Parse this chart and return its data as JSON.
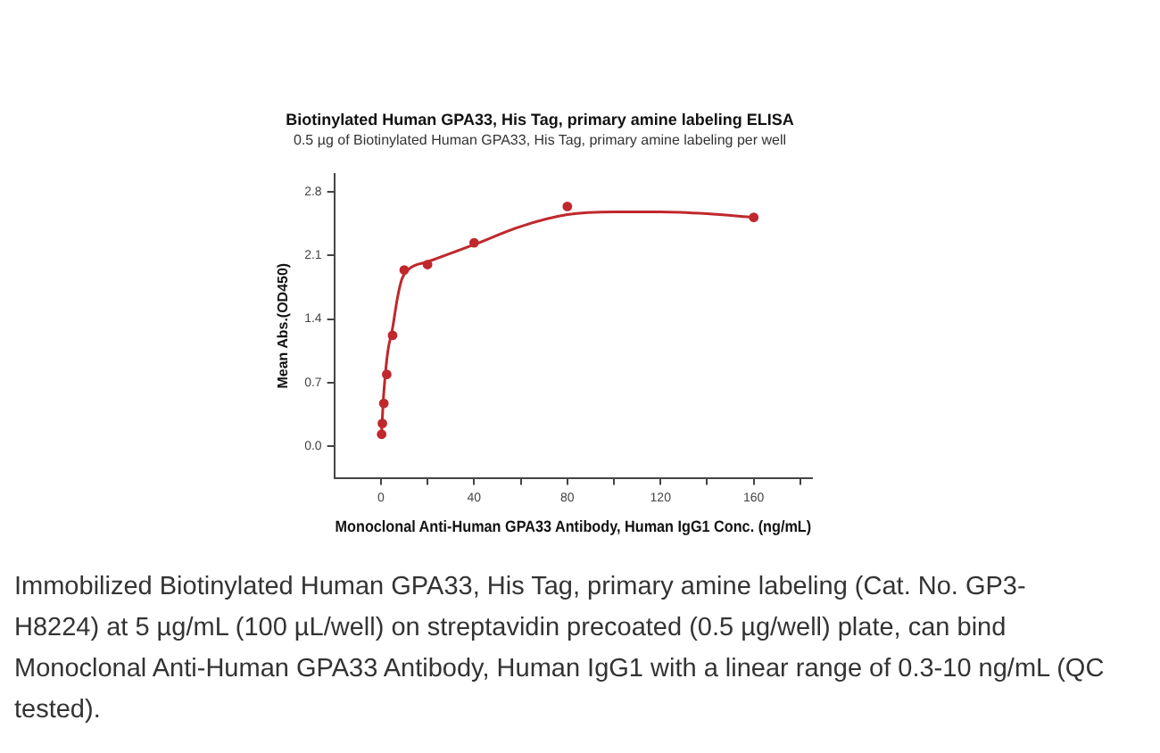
{
  "chart_data": {
    "type": "scatter",
    "title": "Biotinylated Human GPA33, His Tag, primary amine labeling ELISA",
    "subtitle": "0.5 µg of Biotinylated Human GPA33, His Tag, primary amine labeling per well",
    "xlabel": "Monoclonal Anti-Human GPA33 Antibody, Human IgG1 Conc. (ng/mL)",
    "ylabel": "Mean Abs.(OD450)",
    "series": [
      {
        "color": "#c0282d",
        "marker": "circle",
        "x": [
          0.3125,
          0.625,
          1.25,
          2.5,
          5,
          10,
          20,
          40,
          80,
          160
        ],
        "values": [
          0.13,
          0.25,
          0.47,
          0.79,
          1.22,
          1.94,
          2.0,
          2.24,
          2.64,
          2.52
        ]
      },
      {
        "type": "line",
        "color": "#c0282d",
        "marker": "none",
        "x": [
          0.3,
          1,
          2,
          3,
          5,
          7,
          9,
          12,
          20,
          40,
          60,
          80,
          100,
          120,
          140,
          160
        ],
        "values": [
          0.15,
          0.5,
          0.82,
          1.05,
          1.3,
          1.62,
          1.84,
          1.95,
          2.03,
          2.22,
          2.42,
          2.55,
          2.58,
          2.58,
          2.56,
          2.52
        ]
      }
    ],
    "xlim": [
      -20,
      185
    ],
    "ylim": [
      -0.35,
      3.0
    ],
    "xticks": [
      0,
      {
        "value": 20,
        "label": null
      },
      40,
      {
        "value": 60,
        "label": null
      },
      80,
      {
        "value": 100,
        "label": null
      },
      120,
      {
        "value": 140,
        "label": null
      },
      160,
      {
        "value": 180,
        "label": null
      }
    ],
    "yticks": [
      {
        "value": 0,
        "label": "0.0"
      },
      {
        "value": 0.7,
        "label": "0.7"
      },
      {
        "value": 1.4,
        "label": "1.4"
      },
      {
        "value": 2.1,
        "label": "2.1"
      },
      {
        "value": 2.8,
        "label": "2.8"
      }
    ],
    "grid": false,
    "legend": false,
    "annotations": [
      "Immobilized Biotinylated Human GPA33, His Tag, primary amine labeling (Cat. No. GP3-H8224) at 5 µg/mL (100 µL/well) on streptavidin precoated (0.5 µg/well) plate, can bind Monoclonal Anti-Human GPA33 Antibody, Human IgG1 with a linear range of 0.3-10 ng/mL (QC tested)."
    ]
  }
}
